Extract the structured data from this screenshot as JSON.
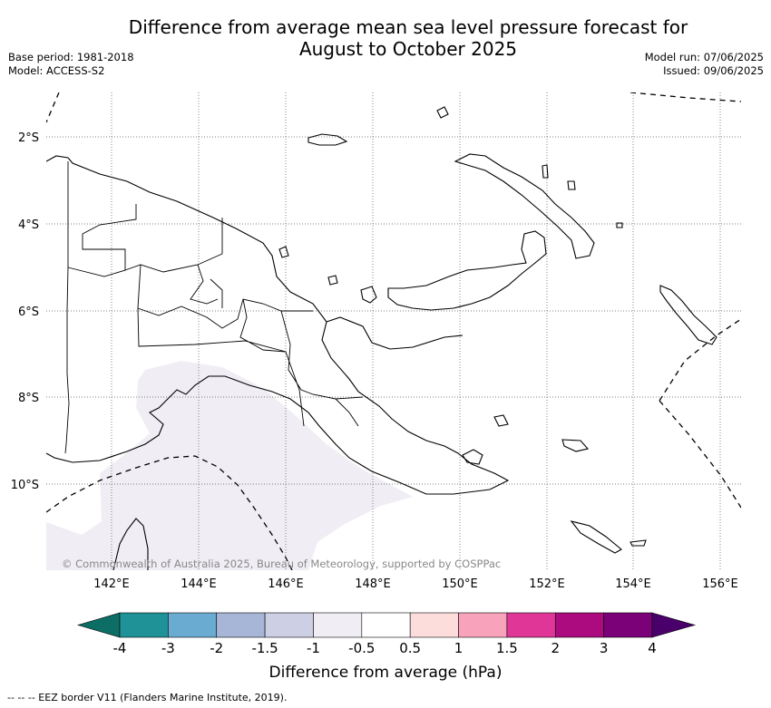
{
  "title": {
    "line1": "Difference from average mean sea level pressure forecast for",
    "line2": "August to October 2025"
  },
  "meta_left": {
    "base_period": "Base period: 1981-2018",
    "model": "Model: ACCESS-S2"
  },
  "meta_right": {
    "model_run": "Model run: 07/06/2025",
    "issued": "Issued: 09/06/2025"
  },
  "map": {
    "lat_labels": [
      "2°S",
      "4°S",
      "6°S",
      "8°S",
      "10°S"
    ],
    "lon_labels": [
      "142°E",
      "144°E",
      "146°E",
      "148°E",
      "150°E",
      "152°E",
      "154°E",
      "156°E"
    ],
    "copyright": "© Commonwealth of Australia 2025, Bureau of Meteorology, supported by COSPPac",
    "anomaly_category_shaded": "-1 to -0.5",
    "colors": {
      "shade": "#f1edf4",
      "grid": "#555555",
      "coast": "#000000"
    }
  },
  "colorbar": {
    "labels": [
      "-4",
      "-3",
      "-2",
      "-1.5",
      "-1",
      "-0.5",
      "0.5",
      "1",
      "1.5",
      "2",
      "3",
      "4"
    ],
    "colors": [
      "#0d6e66",
      "#1e9297",
      "#69abd1",
      "#a7b6d7",
      "#cdcfe4",
      "#f1edf4",
      "#ffffff",
      "#fddcdc",
      "#f8a2bb",
      "#df3698",
      "#ac0b7f",
      "#7a0177",
      "#49006a"
    ],
    "title": "Difference from average (hPa)"
  },
  "footnote": "--  --  -- EEZ border V11 (Flanders Marine Institute, 2019)."
}
